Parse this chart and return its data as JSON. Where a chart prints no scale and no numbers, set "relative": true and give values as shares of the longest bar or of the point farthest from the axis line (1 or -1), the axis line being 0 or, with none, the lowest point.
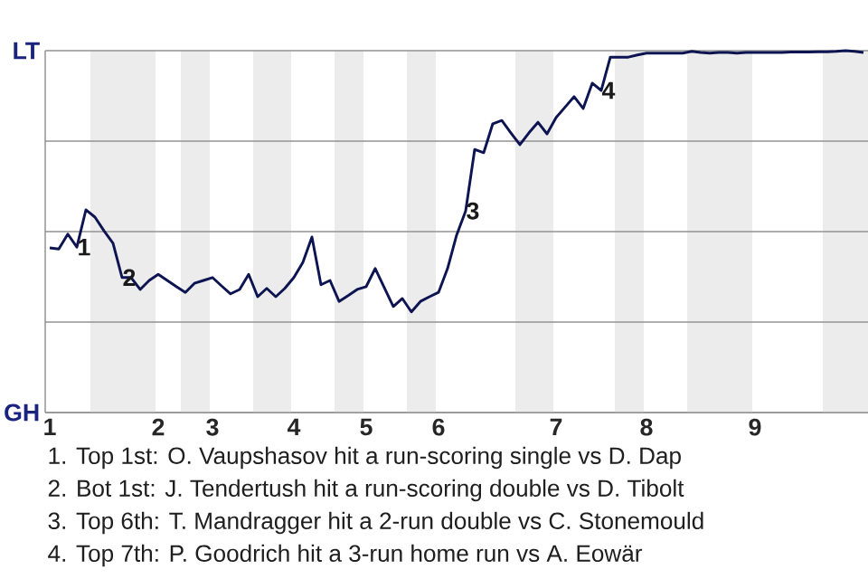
{
  "chart_data": {
    "type": "line",
    "relative": true,
    "categories": [
      "1",
      null,
      null,
      null,
      null,
      null,
      null,
      null,
      null,
      null,
      null,
      null,
      "2",
      null,
      null,
      null,
      null,
      null,
      "3",
      null,
      null,
      null,
      null,
      null,
      null,
      null,
      null,
      "4",
      null,
      null,
      null,
      null,
      null,
      null,
      null,
      "5",
      null,
      null,
      null,
      null,
      null,
      null,
      null,
      "6",
      null,
      null,
      null,
      null,
      null,
      null,
      null,
      null,
      null,
      null,
      null,
      null,
      "7",
      null,
      null,
      null,
      null,
      null,
      null,
      null,
      null,
      null,
      "8",
      null,
      null,
      null,
      null,
      null,
      null,
      null,
      null,
      null,
      null,
      null,
      "9",
      null,
      null,
      null,
      null,
      null,
      null,
      null,
      null,
      null,
      null,
      null,
      null
    ],
    "values": [
      0.455,
      0.452,
      0.493,
      0.457,
      0.56,
      0.54,
      0.502,
      0.468,
      0.373,
      0.373,
      0.34,
      0.365,
      0.382,
      0.365,
      0.348,
      0.332,
      0.357,
      0.365,
      0.373,
      0.35,
      0.328,
      0.34,
      0.382,
      0.32,
      0.343,
      0.32,
      0.343,
      0.373,
      0.415,
      0.485,
      0.353,
      0.365,
      0.307,
      0.323,
      0.34,
      0.348,
      0.398,
      0.345,
      0.293,
      0.315,
      0.278,
      0.307,
      0.32,
      0.332,
      0.398,
      0.49,
      0.557,
      0.727,
      0.718,
      0.798,
      0.807,
      0.773,
      0.74,
      0.773,
      0.802,
      0.77,
      0.815,
      0.844,
      0.873,
      0.84,
      0.91,
      0.89,
      0.982,
      0.982,
      0.982,
      0.988,
      0.993,
      0.993,
      0.993,
      0.993,
      0.993,
      0.998,
      0.995,
      0.993,
      0.995,
      0.995,
      0.993,
      0.995,
      0.995,
      0.995,
      0.995,
      0.995,
      0.996,
      0.996,
      0.996,
      0.997,
      0.997,
      0.998,
      1.0,
      0.998,
      0.995
    ],
    "color": "#0d1452",
    "grid": "y",
    "annotations": [
      "LT",
      "GH",
      {
        "text": "1",
        "y": 0.457
      },
      {
        "text": "2",
        "y": 0.373
      },
      {
        "text": "3",
        "y": 0.557
      },
      {
        "text": "4",
        "y": 0.89
      },
      "1. Top 1st: O. Vaupshasov hit a run-scoring single vs D. Dap",
      "2. Bot 1st: J. Tendertush hit a run-scoring double vs D. Tibolt",
      "3. Top 6th: T. Mandragger hit a 2-run double vs C. Stonemould",
      "4. Top 7th: P. Goodrich hit a 3-run home run vs A. Eowär"
    ]
  }
}
